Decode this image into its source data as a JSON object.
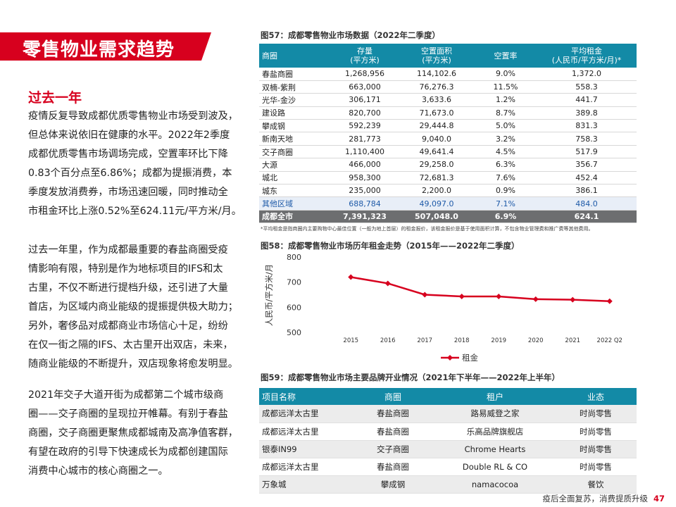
{
  "banner": {
    "title": "零售物业需求趋势",
    "color": "#d7001e"
  },
  "section": {
    "title": "过去一年"
  },
  "paragraphs": [
    [
      "疫情反复导致成都优质零售物业市场受到波及，",
      "但总体来说依旧在健康的水平。2022年2季度",
      "成都优质零售市场调场完成，空置率环比下降",
      "0.83个百分点至6.86%；成都为提振消费，本",
      "季度发放消费券，市场迅速回暖，同时推动全",
      "市租金环比上涨0.52%至624.11元/平方米/月。"
    ],
    [
      "过去一年里，作为成都最重要的春盐商圈受疫",
      "情影响有限，特别是作为地标项目的IFS和太",
      "古里，不仅不断进行提档升级，还引进了大量",
      "首店，为区域内商业能级的提振提供极大助力；",
      "另外，奢侈品对成都商业市场信心十足，纷纷",
      "在仅一街之隔的IFS、太古里开出双店，未来，",
      "随商业能级的不断提升，双店现象将愈发明显。"
    ],
    [
      "2021年交子大道开街为成都第二个城市级商",
      "圈——交子商圈的呈现拉开帷幕。有别于春盐",
      "商圈，交子商圈更聚焦成都城南及高净值客群，",
      "有望在政府的引导下快速成长为成都创建国际",
      "消费中心城市的核心商圈之一。"
    ]
  ],
  "table57": {
    "title": "图57：成都零售物业市场数据（2022年二季度）",
    "headers": [
      "商圈",
      "存量\n(平方米)",
      "空置面积\n(平方米)",
      "空置率",
      "平均租金\n(人民币/平方米/月)*"
    ],
    "rows": [
      [
        "春盐商圈",
        "1,268,956",
        "114,102.6",
        "9.0%",
        "1,372.0"
      ],
      [
        "双楠-紫荆",
        "663,000",
        "76,276.3",
        "11.5%",
        "558.3"
      ],
      [
        "光华-金沙",
        "306,171",
        "3,633.6",
        "1.2%",
        "441.7"
      ],
      [
        "建设路",
        "820,700",
        "71,673.0",
        "8.7%",
        "389.8"
      ],
      [
        "攀成钢",
        "592,239",
        "29,444.8",
        "5.0%",
        "831.3"
      ],
      [
        "新南天地",
        "281,773",
        "9,040.0",
        "3.2%",
        "758.3"
      ],
      [
        "交子商圈",
        "1,110,400",
        "49,641.4",
        "4.5%",
        "517.9"
      ],
      [
        "大源",
        "466,000",
        "29,258.0",
        "6.3%",
        "356.7"
      ],
      [
        "城北",
        "958,300",
        "72,681.3",
        "7.6%",
        "452.4"
      ],
      [
        "城东",
        "235,000",
        "2,200.0",
        "0.9%",
        "386.1"
      ]
    ],
    "other": [
      "其他区域",
      "688,784",
      "49,097.0",
      "7.1%",
      "484.0"
    ],
    "total": [
      "成都全市",
      "7,391,323",
      "507,048.0",
      "6.9%",
      "624.1"
    ],
    "footnote": "*平均租金是指商圈内主要购物中心最佳位置（一般为地上首层）的租金报价，该租金报价是基于使用面积计算，不包含物业管理费和推广费等其他费用。"
  },
  "chart_title": "图58：成都零售物业市场历年租金走势（2015年——2022年二季度）",
  "chart_data": {
    "type": "line",
    "title": "图58：成都零售物业市场历年租金走势（2015年——2022年二季度）",
    "categories": [
      "2015",
      "2016",
      "2017",
      "2018",
      "2019",
      "2020",
      "2021",
      "2022 Q2"
    ],
    "series": [
      {
        "name": "租金",
        "values": [
          720,
          695,
          650,
          643,
          643,
          632,
          630,
          624.1
        ],
        "color": "#d7001e"
      }
    ],
    "ylabel": "人民币/平方米/月",
    "ylim": [
      500,
      800
    ],
    "yticks": [
      500,
      600,
      700,
      800
    ],
    "legend": "bottom"
  },
  "table59": {
    "title": "图59：成都零售物业市场主要品牌开业情况（2021年下半年——2022年上半年）",
    "headers": [
      "项目名称",
      "商圈",
      "租户",
      "业态"
    ],
    "rows": [
      [
        "成都远洋太古里",
        "春盐商圈",
        "路易威登之家",
        "时尚零售"
      ],
      [
        "成都远洋太古里",
        "春盐商圈",
        "乐高品牌旗舰店",
        "时尚零售"
      ],
      [
        "银泰IN99",
        "交子商圈",
        "Chrome Hearts",
        "时尚零售"
      ],
      [
        "成都远洋太古里",
        "春盐商圈",
        "Double RL & CO",
        "时尚零售"
      ],
      [
        "万象城",
        "攀成钢",
        "namacocoa",
        "餐饮"
      ]
    ]
  },
  "footer": {
    "text": "疫后全面复苏，消费提质升级",
    "page": "47"
  }
}
